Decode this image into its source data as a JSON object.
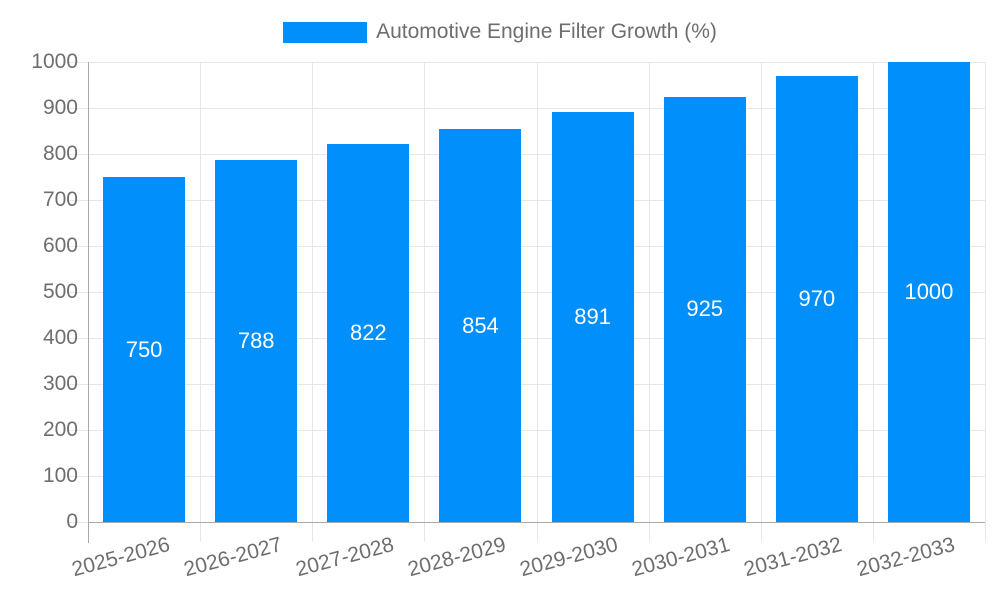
{
  "legend": {
    "items": [
      {
        "label": "Automotive Engine Filter Growth (%)",
        "color": "#008FFB"
      }
    ]
  },
  "chart_data": {
    "type": "bar",
    "title": "",
    "xlabel": "",
    "ylabel": "",
    "categories": [
      "2025-2026",
      "2026-2027",
      "2027-2028",
      "2028-2029",
      "2029-2030",
      "2030-2031",
      "2031-2032",
      "2032-2033"
    ],
    "series": [
      {
        "name": "Automotive Engine Filter Growth (%)",
        "values": [
          750,
          788,
          822,
          854,
          891,
          925,
          970,
          1000
        ]
      }
    ],
    "value_labels": [
      "750",
      "788",
      "822",
      "854",
      "891",
      "925",
      "970",
      "1000"
    ],
    "ylim": [
      0,
      1000
    ],
    "yticks": [
      0,
      100,
      200,
      300,
      400,
      500,
      600,
      700,
      800,
      900,
      1000
    ],
    "grid": true,
    "legend_position": "top",
    "bar_color": "#008FFB",
    "value_label_color": "#ffffff"
  },
  "colors": {
    "bar": "#008FFB",
    "axis_text": "#6e6e6e",
    "grid_line": "#e7e7e7",
    "tick_line": "#e7e7e7",
    "axis_line": "#a9a9a9",
    "value_label": "#ffffff",
    "background": "#ffffff"
  }
}
